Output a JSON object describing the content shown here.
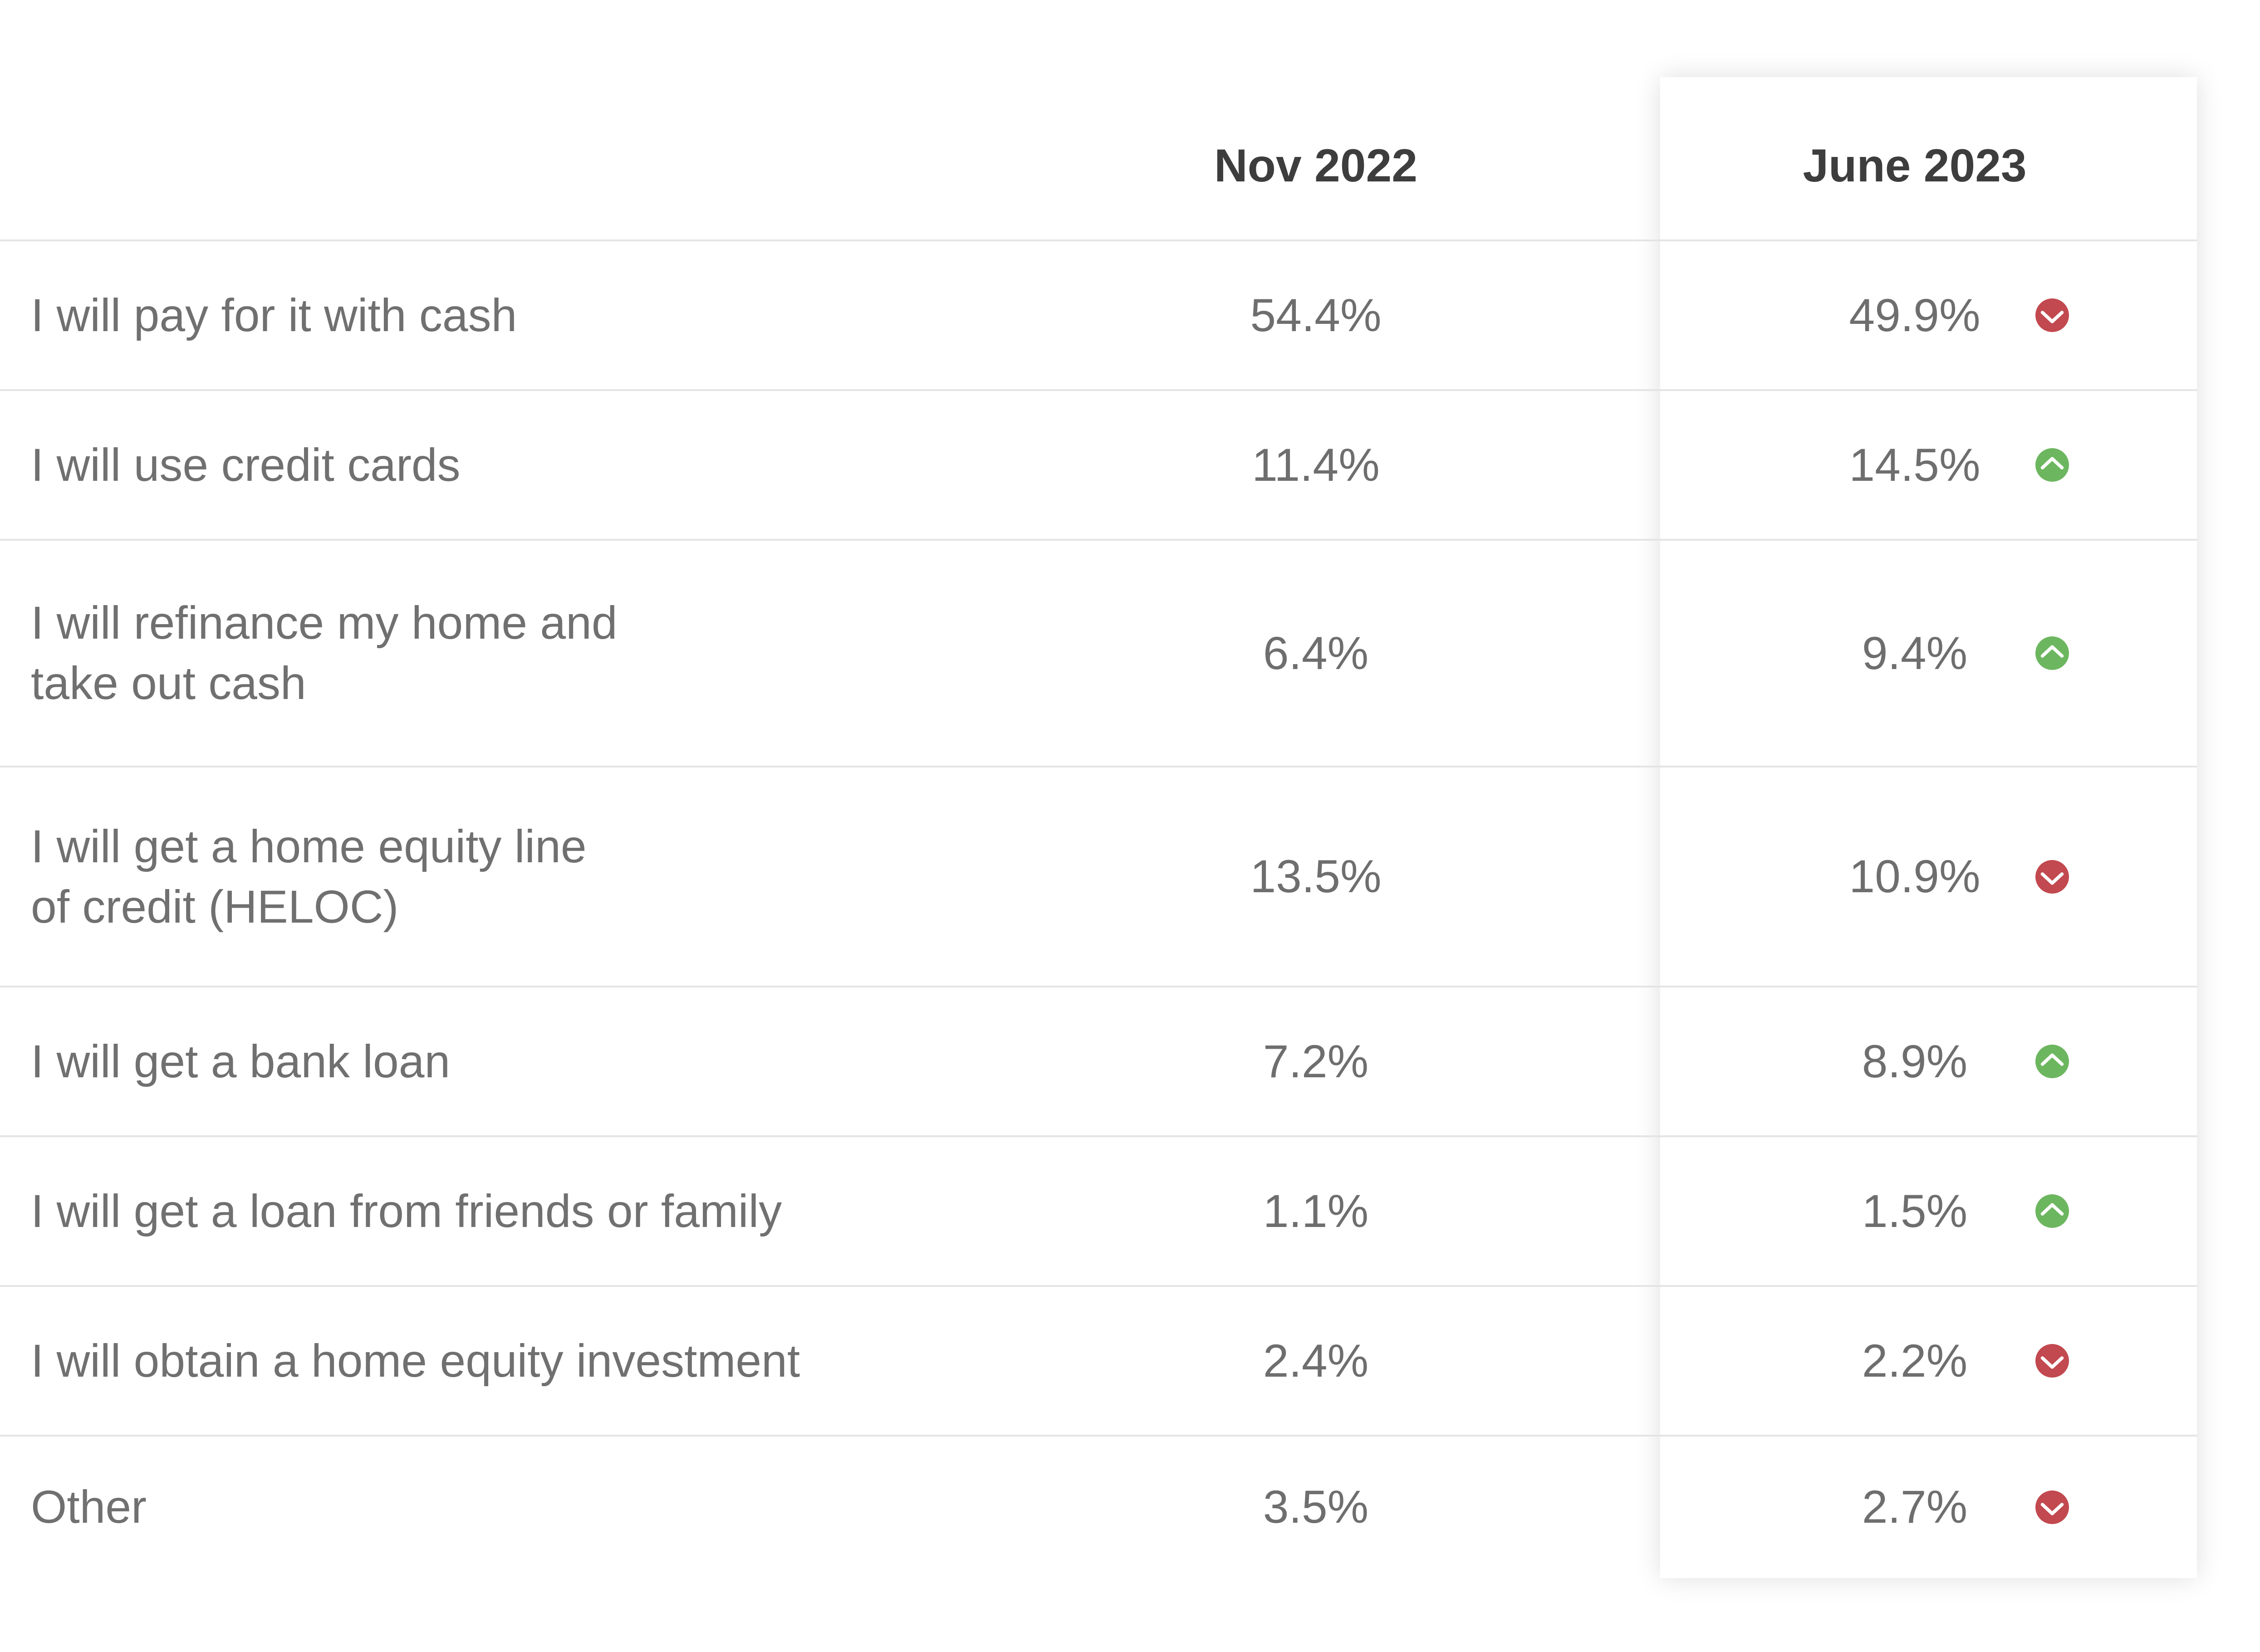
{
  "chart_data": {
    "type": "table",
    "columns": [
      "Nov 2022",
      "June 2023"
    ],
    "rows": [
      {
        "label_lines": [
          "I will pay for it with cash"
        ],
        "nov_2022": "54.4%",
        "june_2023": "49.9%",
        "change": "down"
      },
      {
        "label_lines": [
          "I will use credit cards"
        ],
        "nov_2022": "11.4%",
        "june_2023": "14.5%",
        "change": "up"
      },
      {
        "label_lines": [
          "I will refinance my home and",
          "take out cash"
        ],
        "nov_2022": "6.4%",
        "june_2023": "9.4%",
        "change": "up"
      },
      {
        "label_lines": [
          "I will get a home equity line",
          "of credit (HELOC)"
        ],
        "nov_2022": "13.5%",
        "june_2023": "10.9%",
        "change": "down"
      },
      {
        "label_lines": [
          "I will get a bank loan"
        ],
        "nov_2022": "7.2%",
        "june_2023": "8.9%",
        "change": "up"
      },
      {
        "label_lines": [
          "I will get a loan from friends or family"
        ],
        "nov_2022": "1.1%",
        "june_2023": "1.5%",
        "change": "up"
      },
      {
        "label_lines": [
          "I will obtain a home equity investment"
        ],
        "nov_2022": "2.4%",
        "june_2023": "2.2%",
        "change": "down"
      },
      {
        "label_lines": [
          "Other"
        ],
        "nov_2022": "3.5%",
        "june_2023": "2.7%",
        "change": "down"
      }
    ],
    "indicator_icons": {
      "up": "chevron-up-circle-icon",
      "down": "chevron-down-circle-icon"
    },
    "colors": {
      "up": "#6cb65f",
      "down": "#c2494f",
      "label_text": "#707070",
      "value_text": "#6e6e6e",
      "header_text": "#3d3d3d",
      "divider": "#e4e4e4"
    }
  }
}
